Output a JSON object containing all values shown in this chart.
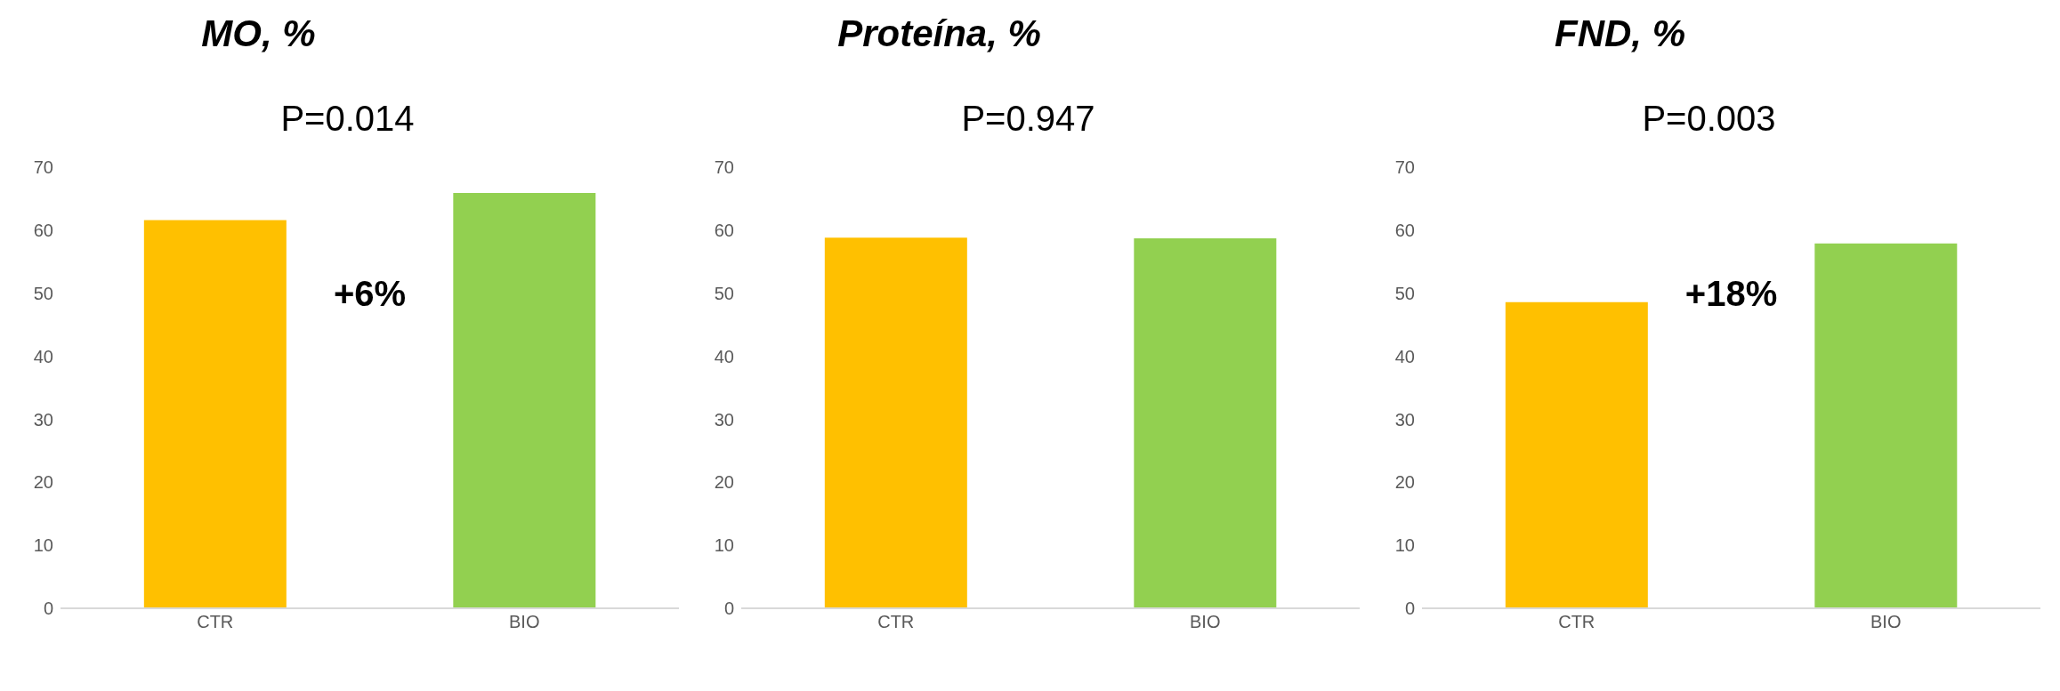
{
  "chart_data": [
    {
      "type": "bar",
      "title": "MO, %",
      "subtitle": "P=0.014",
      "categories": [
        "CTR",
        "BIO"
      ],
      "values": [
        61.6,
        65.9
      ],
      "colors": [
        "#ffc000",
        "#92d050"
      ],
      "ylim": [
        0,
        70
      ],
      "yticks": [
        0,
        10,
        20,
        30,
        40,
        50,
        60,
        70
      ],
      "annotations": [
        "+6%"
      ]
    },
    {
      "type": "bar",
      "title": "Proteína, %",
      "subtitle": "P=0.947",
      "categories": [
        "CTR",
        "BIO"
      ],
      "values": [
        58.8,
        58.7
      ],
      "colors": [
        "#ffc000",
        "#92d050"
      ],
      "ylim": [
        0,
        70
      ],
      "yticks": [
        0,
        10,
        20,
        30,
        40,
        50,
        60,
        70
      ]
    },
    {
      "type": "bar",
      "title": "FND, %",
      "subtitle": "P=0.003",
      "categories": [
        "CTR",
        "BIO"
      ],
      "values": [
        48.6,
        57.9
      ],
      "colors": [
        "#ffc000",
        "#92d050"
      ],
      "ylim": [
        0,
        70
      ],
      "yticks": [
        0,
        10,
        20,
        30,
        40,
        50,
        60,
        70
      ],
      "annotations": [
        "+18%"
      ]
    }
  ]
}
